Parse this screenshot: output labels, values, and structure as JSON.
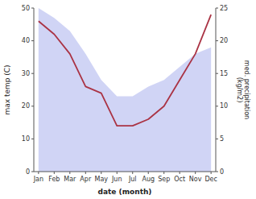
{
  "chart_data": {
    "type": "combo",
    "categories": [
      "Jan",
      "Feb",
      "Mar",
      "Apr",
      "May",
      "Jun",
      "Jul",
      "Aug",
      "Sep",
      "Oct",
      "Nov",
      "Dec"
    ],
    "series": [
      {
        "type": "area",
        "color": "#b0b8ee",
        "values": [
          50,
          47,
          43,
          36,
          28,
          23,
          23,
          26,
          28,
          32,
          36,
          38
        ],
        "bottom": [
          0,
          0,
          0,
          0,
          0,
          0,
          0,
          0,
          0,
          0,
          0,
          0
        ]
      },
      {
        "type": "line",
        "color": "#aa3344",
        "axis": "y2",
        "values": [
          23,
          21,
          18,
          13,
          12,
          7,
          7,
          8,
          10,
          14,
          18,
          24
        ]
      }
    ],
    "xlabel": "date (month)",
    "ylabel": "max temp (C)",
    "y2label": "med. precipitation\n(kg/m2)",
    "ylim": [
      0,
      50
    ],
    "yticks": [
      0,
      10,
      20,
      30,
      40,
      50
    ],
    "y2lim": [
      0,
      25
    ],
    "y2ticks": [
      0,
      5,
      10,
      15,
      20,
      25
    ],
    "grid": false
  }
}
